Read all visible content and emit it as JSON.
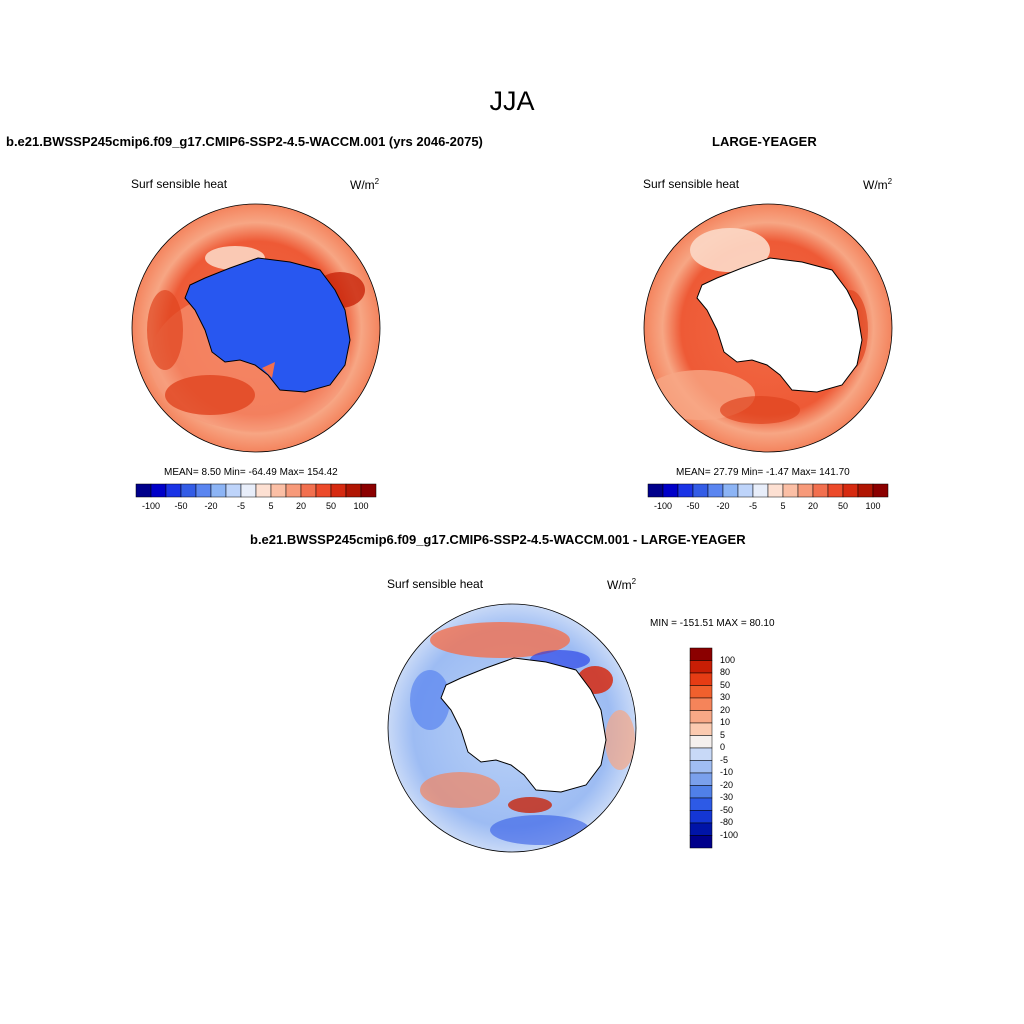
{
  "figure": {
    "title": "JJA",
    "season": "JJA"
  },
  "panels": [
    {
      "title": "b.e21.BWSSP245cmip6.f09_g17.CMIP6-SSP2-4.5-WACCM.001 (yrs 2046-2075)",
      "variable": "Surf sensible heat",
      "units": "W/m",
      "units_exp": "2",
      "stats": "MEAN=   8.50  Min= -64.49  Max= 154.42",
      "stats_values": {
        "mean": 8.5,
        "min": -64.49,
        "max": 154.42
      }
    },
    {
      "title": "LARGE-YEAGER",
      "variable": "Surf sensible heat",
      "units": "W/m",
      "units_exp": "2",
      "stats": "MEAN=  27.79  Min=  -1.47  Max= 141.70",
      "stats_values": {
        "mean": 27.79,
        "min": -1.47,
        "max": 141.7
      }
    },
    {
      "title": "b.e21.BWSSP245cmip6.f09_g17.CMIP6-SSP2-4.5-WACCM.001 - LARGE-YEAGER",
      "variable": "Surf sensible heat",
      "units": "W/m",
      "units_exp": "2",
      "stats": "MIN = -151.51 MAX =  80.10",
      "stats_values": {
        "min": -151.51,
        "max": 80.1
      }
    }
  ],
  "colorbar": {
    "horizontal_labels": [
      "-100",
      "-50",
      "-20",
      "-5",
      "5",
      "20",
      "50",
      "100"
    ],
    "horizontal_colors": [
      "#00008b",
      "#0000c8",
      "#1a33e6",
      "#335ce6",
      "#5a85f0",
      "#8cb4f5",
      "#bed4fa",
      "#e8eefa",
      "#fde0d2",
      "#fbbfa5",
      "#f79a7a",
      "#f2704f",
      "#ec4a2a",
      "#d62a10",
      "#b01503",
      "#8b0000"
    ],
    "vertical_labels": [
      "100",
      "80",
      "50",
      "30",
      "20",
      "10",
      "5",
      "0",
      "-5",
      "-10",
      "-20",
      "-30",
      "-50",
      "-80",
      "-100"
    ],
    "vertical_colors": [
      "#8b0000",
      "#c81e05",
      "#e63c14",
      "#f0602d",
      "#f5845a",
      "#f8a886",
      "#fbcab0",
      "#f5f0ee",
      "#c8d9f7",
      "#a0bdf2",
      "#7aa0ec",
      "#5080e8",
      "#2d5ae6",
      "#1436d4",
      "#0014a8",
      "#00008b"
    ]
  }
}
